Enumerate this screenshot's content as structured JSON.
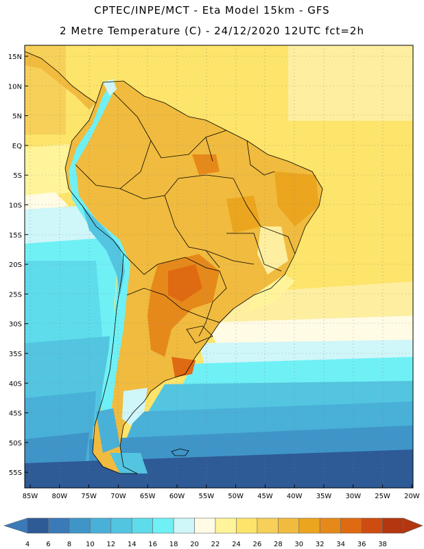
{
  "header": {
    "line1": "CPTEC/INPE/MCT -  Eta Model 15km - GFS",
    "line2": "2 Metre Temperature (C) - 24/12/2020 12UTC fct=2h"
  },
  "map": {
    "lat_labels": [
      "15N",
      "10N",
      "5N",
      "EQ",
      "5S",
      "10S",
      "15S",
      "20S",
      "25S",
      "30S",
      "35S",
      "40S",
      "45S",
      "50S",
      "55S"
    ],
    "lon_labels": [
      "85W",
      "80W",
      "75W",
      "70W",
      "65W",
      "60W",
      "55W",
      "50W",
      "45W",
      "40W",
      "35W",
      "30W",
      "25W",
      "20W"
    ],
    "lat_range": [
      17,
      -57
    ],
    "lon_range": [
      -86,
      -20
    ]
  },
  "legend": {
    "values": [
      "4",
      "6",
      "8",
      "10",
      "12",
      "14",
      "16",
      "18",
      "20",
      "22",
      "24",
      "26",
      "28",
      "30",
      "32",
      "34",
      "36",
      "38"
    ],
    "colors": [
      "#2e5a96",
      "#3a7ab8",
      "#3f95c8",
      "#49b0d8",
      "#53c5e0",
      "#5edceb",
      "#6ff0f5",
      "#cff6f8",
      "#fffbe5",
      "#fff49a",
      "#fde46a",
      "#f6d058",
      "#f0bb3e",
      "#eba51e",
      "#e6891b",
      "#e06a12",
      "#cf4c10",
      "#b3360f"
    ],
    "left_arrow_color": "#3a7ab8",
    "right_arrow_color": "#b3360f"
  }
}
